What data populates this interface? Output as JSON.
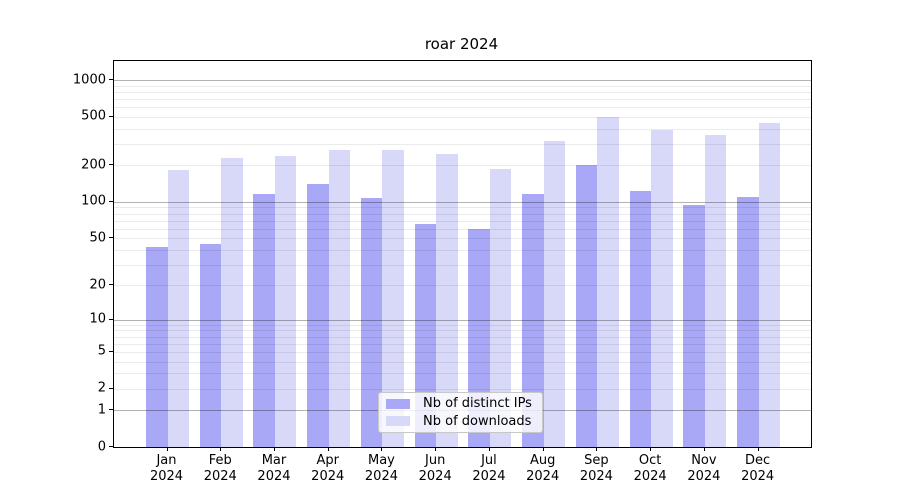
{
  "title": "roar 2024",
  "chart_data": {
    "type": "bar",
    "title": "roar 2024",
    "months": [
      "Jan",
      "Feb",
      "Mar",
      "Apr",
      "May",
      "Jun",
      "Jul",
      "Aug",
      "Sep",
      "Oct",
      "Nov",
      "Dec"
    ],
    "year": "2024",
    "series": [
      {
        "name": "Nb of distinct IPs",
        "color": "#a8a8f6",
        "values": [
          42,
          45,
          117,
          140,
          108,
          65,
          60,
          117,
          200,
          122,
          95,
          109
        ]
      },
      {
        "name": "Nb of downloads",
        "color": "#d8d8f8",
        "values": [
          182,
          230,
          237,
          266,
          269,
          250,
          188,
          315,
          500,
          390,
          358,
          449
        ]
      }
    ],
    "y_axis": {
      "scale": "log10(1+x)",
      "tick_values": [
        1000,
        500,
        200,
        100,
        50,
        20,
        10,
        5,
        2,
        1,
        0
      ],
      "tick_labels": [
        "1000",
        "500",
        "200",
        "100",
        "50",
        "20",
        "10",
        "5",
        "2",
        "1",
        "0"
      ],
      "major_gridlines": [
        1,
        10,
        100,
        1000
      ],
      "range": [
        0,
        1430
      ]
    },
    "legend": {
      "position": "bottom-center",
      "entries": [
        "Nb of distinct IPs",
        "Nb of downloads"
      ]
    },
    "grid": true
  }
}
